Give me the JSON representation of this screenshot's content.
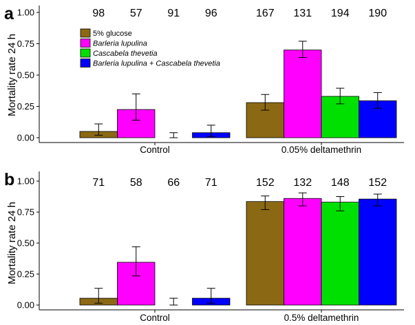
{
  "chart_data": [
    {
      "type": "bar",
      "panel_letter": "a",
      "ylabel": "Mortality rate 24 h",
      "ylim": [
        0,
        1
      ],
      "yticks": [
        "0.00",
        "0.25",
        "0.50",
        "0.75",
        "1.00"
      ],
      "categories": [
        "Control",
        "0.05% deltamethrin"
      ],
      "series": [
        {
          "name": "5% glucose",
          "color": "#8B6914",
          "values": [
            0.05,
            0.28
          ],
          "err_low": [
            0.02,
            0.22
          ],
          "err_high": [
            0.11,
            0.345
          ],
          "n": [
            98,
            167
          ]
        },
        {
          "name": "Barleria lupulina",
          "color": "#FF00FF",
          "values": [
            0.225,
            0.7
          ],
          "err_low": [
            0.14,
            0.64
          ],
          "err_high": [
            0.35,
            0.77
          ],
          "n": [
            57,
            131
          ]
        },
        {
          "name": "Cascabela thevetia",
          "color": "#00E000",
          "values": [
            0.0,
            0.33
          ],
          "err_low": [
            0.0,
            0.27
          ],
          "err_high": [
            0.04,
            0.395
          ],
          "n": [
            91,
            194
          ]
        },
        {
          "name": "Barleria lupulina + Cascabela thevetia",
          "color": "#0000FF",
          "values": [
            0.04,
            0.295
          ],
          "err_low": [
            0.01,
            0.235
          ],
          "err_high": [
            0.1,
            0.36
          ],
          "n": [
            96,
            190
          ]
        }
      ],
      "legend": {
        "position": "top-left"
      }
    },
    {
      "type": "bar",
      "panel_letter": "b",
      "ylabel": "Mortality rate 24 h",
      "ylim": [
        0,
        1
      ],
      "yticks": [
        "0.00",
        "0.25",
        "0.50",
        "0.75",
        "1.00"
      ],
      "categories": [
        "Control",
        "0.5% deltamethrin"
      ],
      "series": [
        {
          "name": "5% glucose",
          "color": "#8B6914",
          "values": [
            0.055,
            0.835
          ],
          "err_low": [
            0.015,
            0.77
          ],
          "err_high": [
            0.135,
            0.88
          ],
          "n": [
            71,
            152
          ]
        },
        {
          "name": "Barleria lupulina",
          "color": "#FF00FF",
          "values": [
            0.345,
            0.86
          ],
          "err_low": [
            0.235,
            0.8
          ],
          "err_high": [
            0.47,
            0.905
          ],
          "n": [
            58,
            132
          ]
        },
        {
          "name": "Cascabela thevetia",
          "color": "#00E000",
          "values": [
            0.0,
            0.83
          ],
          "err_low": [
            0.0,
            0.76
          ],
          "err_high": [
            0.055,
            0.875
          ],
          "n": [
            66,
            148
          ]
        },
        {
          "name": "Barleria lupulina + Cascabela thevetia",
          "color": "#0000FF",
          "values": [
            0.055,
            0.855
          ],
          "err_low": [
            0.015,
            0.8
          ],
          "err_high": [
            0.135,
            0.895
          ],
          "n": [
            71,
            152
          ]
        }
      ]
    }
  ]
}
